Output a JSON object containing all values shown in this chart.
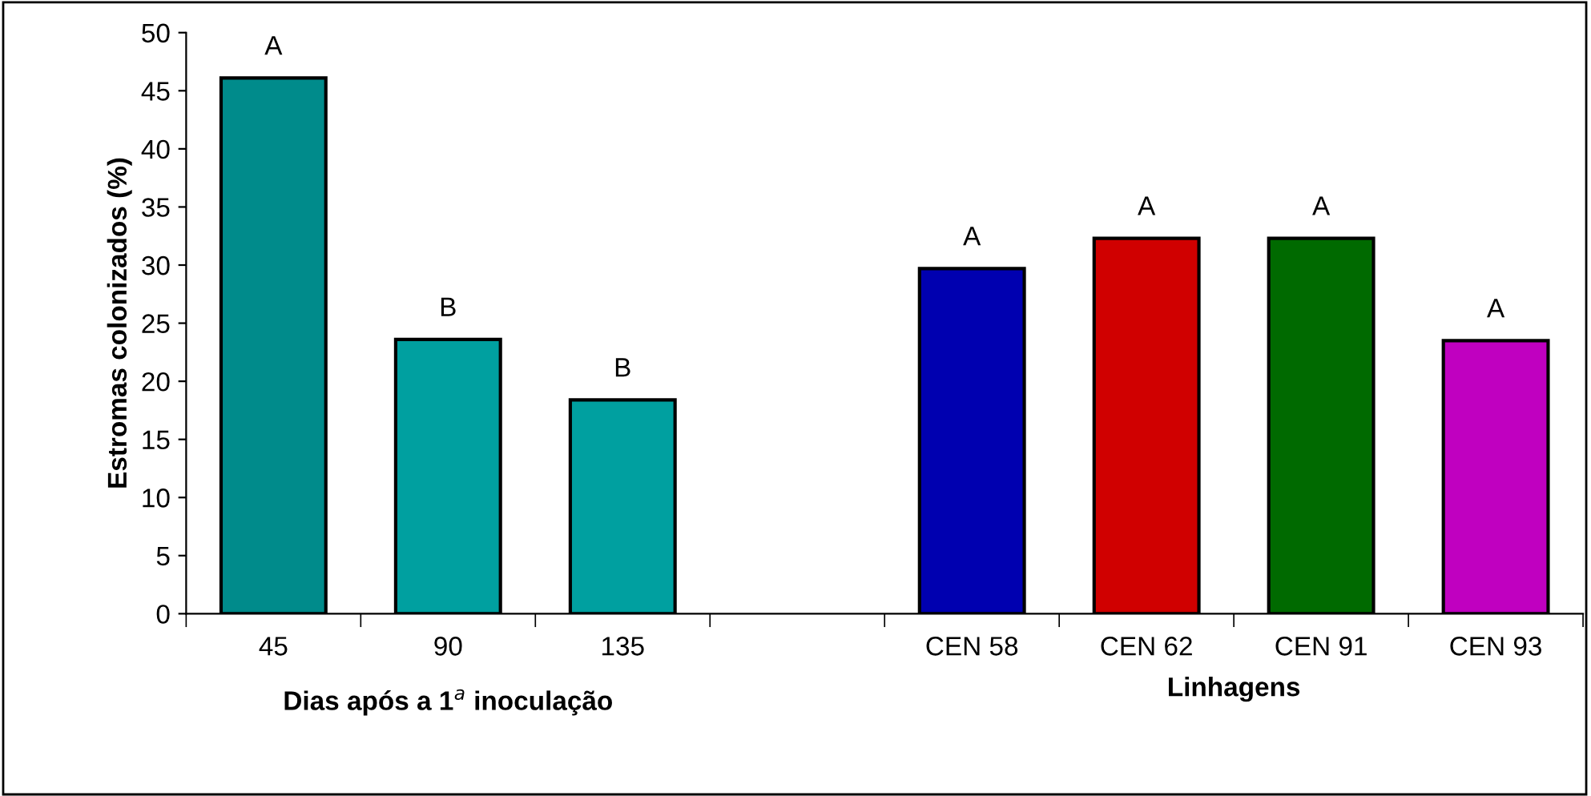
{
  "chart_data": {
    "type": "bar",
    "categories": [
      "45",
      "90",
      "135",
      null,
      "CEN 58",
      "CEN 62",
      "CEN 91",
      "CEN 93"
    ],
    "values": [
      46.1,
      23.6,
      18.4,
      null,
      29.7,
      32.3,
      32.3,
      23.5
    ],
    "colors": [
      "#008b8b",
      "#00a0a0",
      "#00a0a0",
      null,
      "#0000b0",
      "#d00000",
      "#006a00",
      "#c000c0"
    ],
    "value_labels": [
      "A",
      "B",
      "B",
      null,
      "A",
      "A",
      "A",
      "A"
    ],
    "ylabel": "Estromas colonizados (%)",
    "xlabel": "Dias após a 1$^{a}$ inoculação",
    "annotations": [
      "Linhagens"
    ],
    "ylim": [
      0,
      50
    ],
    "yticks": [
      0,
      5,
      10,
      15,
      20,
      25,
      30,
      35,
      40,
      45,
      50
    ],
    "grid": false,
    "legend": false
  }
}
